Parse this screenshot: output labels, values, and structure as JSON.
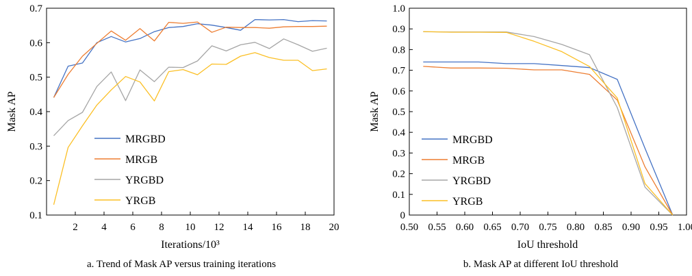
{
  "chart_data": [
    {
      "type": "line",
      "caption": "a. Trend of Mask AP versus training iterations",
      "xlabel": "Iterations/10³",
      "ylabel": "Mask AP",
      "xlim": [
        0,
        20
      ],
      "ylim": [
        0.1,
        0.7
      ],
      "xticks": [
        "2",
        "4",
        "6",
        "8",
        "10",
        "12",
        "14",
        "16",
        "18",
        "20"
      ],
      "yticks": [
        "0.1",
        "0.2",
        "0.3",
        "0.4",
        "0.5",
        "0.6",
        "0.7"
      ],
      "grid": false,
      "legend_position": "center-left",
      "x": [
        0.5,
        1.5,
        2.5,
        3.5,
        4.5,
        5.5,
        6.5,
        7.5,
        8.5,
        9.5,
        10.5,
        11.5,
        12.5,
        13.5,
        14.5,
        15.5,
        16.5,
        17.5,
        18.5,
        19.5
      ],
      "series": [
        {
          "name": "MRGBD",
          "color": "#4472c4",
          "values": [
            0.441,
            0.532,
            0.541,
            0.6,
            0.618,
            0.602,
            0.612,
            0.632,
            0.644,
            0.647,
            0.655,
            0.651,
            0.644,
            0.636,
            0.667,
            0.666,
            0.667,
            0.661,
            0.664,
            0.663
          ]
        },
        {
          "name": "MRGB",
          "color": "#ed7d31",
          "values": [
            0.441,
            0.508,
            0.561,
            0.598,
            0.634,
            0.607,
            0.641,
            0.605,
            0.659,
            0.656,
            0.66,
            0.63,
            0.645,
            0.644,
            0.644,
            0.642,
            0.646,
            0.647,
            0.647,
            0.648
          ]
        },
        {
          "name": "YRGBD",
          "color": "#a5a5a5",
          "values": [
            0.33,
            0.374,
            0.398,
            0.473,
            0.515,
            0.432,
            0.521,
            0.487,
            0.529,
            0.528,
            0.547,
            0.591,
            0.576,
            0.594,
            0.601,
            0.583,
            0.611,
            0.594,
            0.575,
            0.584
          ]
        },
        {
          "name": "YRGB",
          "color": "#fbbf24",
          "values": [
            0.13,
            0.296,
            0.359,
            0.419,
            0.463,
            0.502,
            0.486,
            0.431,
            0.516,
            0.522,
            0.507,
            0.538,
            0.537,
            0.561,
            0.571,
            0.557,
            0.549,
            0.549,
            0.519,
            0.524
          ]
        }
      ]
    },
    {
      "type": "line",
      "caption": "b. Mask AP at different IoU threshold",
      "xlabel": "IoU threshold",
      "ylabel": "Mask AP",
      "xlim": [
        0.5,
        1.0
      ],
      "ylim": [
        0,
        1.0
      ],
      "xticks": [
        "0.50",
        "0.55",
        "0.60",
        "0.65",
        "0.70",
        "0.75",
        "0.80",
        "0.85",
        "0.90",
        "0.95",
        "1.00"
      ],
      "yticks": [
        "0",
        "0.1",
        "0.2",
        "0.3",
        "0.4",
        "0.5",
        "0.6",
        "0.7",
        "0.8",
        "0.9",
        "1.0"
      ],
      "grid": false,
      "legend_position": "bottom-left",
      "x": [
        0.525,
        0.575,
        0.625,
        0.675,
        0.725,
        0.775,
        0.825,
        0.875,
        0.925,
        0.975
      ],
      "series": [
        {
          "name": "MRGBD",
          "color": "#4472c4",
          "values": [
            0.74,
            0.74,
            0.74,
            0.732,
            0.732,
            0.723,
            0.713,
            0.656,
            0.323,
            0.0
          ]
        },
        {
          "name": "MRGB",
          "color": "#ed7d31",
          "values": [
            0.719,
            0.711,
            0.711,
            0.71,
            0.702,
            0.702,
            0.68,
            0.556,
            0.233,
            0.0
          ]
        },
        {
          "name": "YRGBD",
          "color": "#a5a5a5",
          "values": [
            0.886,
            0.885,
            0.885,
            0.885,
            0.863,
            0.825,
            0.775,
            0.52,
            0.135,
            0.0
          ]
        },
        {
          "name": "YRGB",
          "color": "#fbbf24",
          "values": [
            0.887,
            0.884,
            0.884,
            0.883,
            0.84,
            0.79,
            0.718,
            0.566,
            0.152,
            0.0
          ]
        }
      ]
    }
  ]
}
